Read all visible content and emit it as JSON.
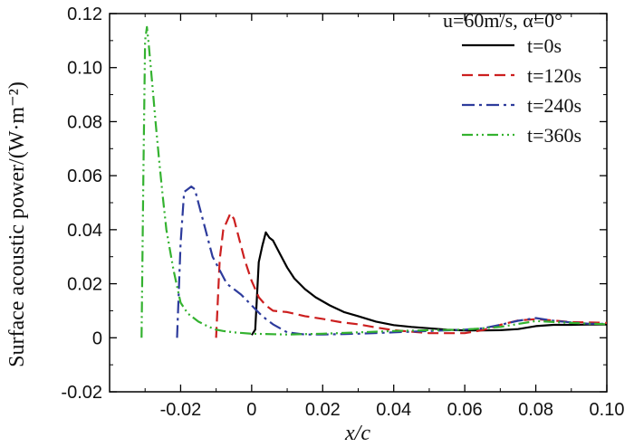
{
  "chart_data": {
    "type": "line",
    "title": "",
    "xlabel": "x/c",
    "ylabel": "Surface acoustic power/(W·m⁻²)",
    "xlim": [
      -0.04,
      0.1
    ],
    "ylim": [
      -0.02,
      0.12
    ],
    "x_ticks": [
      -0.02,
      0,
      0.02,
      0.04,
      0.06,
      0.08,
      0.1
    ],
    "x_tick_labels": [
      "-0.02",
      "0",
      "0.02",
      "0.04",
      "0.06",
      "0.08",
      "0.10"
    ],
    "y_ticks": [
      -0.02,
      0,
      0.02,
      0.04,
      0.06,
      0.08,
      0.1,
      0.12
    ],
    "y_tick_labels": [
      "-0.02",
      "0",
      "0.02",
      "0.04",
      "0.06",
      "0.08",
      "0.10",
      "0.12"
    ],
    "grid": false,
    "legend_position": "top-right",
    "legend_header": "u=60m/s, α=0°",
    "series": [
      {
        "name": "t=0s",
        "color": "#000000",
        "dash": "solid",
        "x": [
          0.0,
          0.001,
          0.002,
          0.003,
          0.004,
          0.005,
          0.006,
          0.008,
          0.01,
          0.012,
          0.015,
          0.018,
          0.022,
          0.026,
          0.03,
          0.035,
          0.04,
          0.045,
          0.05,
          0.055,
          0.06,
          0.065,
          0.07,
          0.075,
          0.08,
          0.085,
          0.09,
          0.095,
          0.1
        ],
        "y": [
          0.001,
          0.003,
          0.028,
          0.034,
          0.039,
          0.037,
          0.036,
          0.031,
          0.026,
          0.022,
          0.018,
          0.015,
          0.012,
          0.0095,
          0.008,
          0.006,
          0.0047,
          0.004,
          0.0035,
          0.003,
          0.0027,
          0.0027,
          0.0028,
          0.0032,
          0.0043,
          0.0048,
          0.0048,
          0.0049,
          0.0049
        ]
      },
      {
        "name": "t=120s",
        "color": "#cc1f1f",
        "dash": "dash",
        "x": [
          -0.01,
          -0.009,
          -0.008,
          -0.007,
          -0.006,
          -0.005,
          -0.004,
          -0.003,
          -0.002,
          -0.001,
          0.0,
          0.002,
          0.004,
          0.006,
          0.01,
          0.015,
          0.02,
          0.025,
          0.03,
          0.035,
          0.04,
          0.05,
          0.06,
          0.065,
          0.07,
          0.075,
          0.08,
          0.085,
          0.09,
          0.095,
          0.1
        ],
        "y": [
          0.0,
          0.029,
          0.04,
          0.043,
          0.046,
          0.044,
          0.039,
          0.034,
          0.029,
          0.025,
          0.021,
          0.015,
          0.012,
          0.01,
          0.0095,
          0.008,
          0.007,
          0.0058,
          0.005,
          0.0038,
          0.0028,
          0.0017,
          0.0017,
          0.0028,
          0.0048,
          0.0064,
          0.0069,
          0.0064,
          0.0058,
          0.0057,
          0.0055
        ]
      },
      {
        "name": "t=240s",
        "color": "#2d3b9c",
        "dash": "dashdot",
        "x": [
          -0.021,
          -0.02,
          -0.019,
          -0.018,
          -0.017,
          -0.016,
          -0.015,
          -0.013,
          -0.011,
          -0.009,
          -0.007,
          -0.005,
          -0.003,
          0.0,
          0.003,
          0.006,
          0.01,
          0.015,
          0.02,
          0.03,
          0.04,
          0.05,
          0.06,
          0.065,
          0.07,
          0.075,
          0.08,
          0.085,
          0.09,
          0.095,
          0.1
        ],
        "y": [
          0.0,
          0.035,
          0.054,
          0.055,
          0.056,
          0.055,
          0.05,
          0.04,
          0.03,
          0.025,
          0.02,
          0.018,
          0.016,
          0.012,
          0.008,
          0.005,
          0.002,
          0.0012,
          0.0012,
          0.0015,
          0.002,
          0.0025,
          0.003,
          0.0035,
          0.0048,
          0.0063,
          0.0073,
          0.0063,
          0.0057,
          0.0052,
          0.0052
        ]
      },
      {
        "name": "t=360s",
        "color": "#34b230",
        "dash": "dashdotdot",
        "x": [
          -0.031,
          -0.0305,
          -0.03,
          -0.0295,
          -0.029,
          -0.028,
          -0.027,
          -0.026,
          -0.025,
          -0.024,
          -0.022,
          -0.02,
          -0.018,
          -0.015,
          -0.012,
          -0.01,
          -0.008,
          -0.005,
          0.0,
          0.01,
          0.02,
          0.03,
          0.04,
          0.05,
          0.06,
          0.07,
          0.08,
          0.09,
          0.1
        ],
        "y": [
          0.0,
          0.06,
          0.11,
          0.115,
          0.109,
          0.094,
          0.079,
          0.065,
          0.052,
          0.04,
          0.025,
          0.013,
          0.009,
          0.006,
          0.004,
          0.003,
          0.0025,
          0.002,
          0.0015,
          0.0012,
          0.0015,
          0.002,
          0.0025,
          0.0028,
          0.003,
          0.004,
          0.0062,
          0.0055,
          0.005
        ]
      }
    ]
  }
}
